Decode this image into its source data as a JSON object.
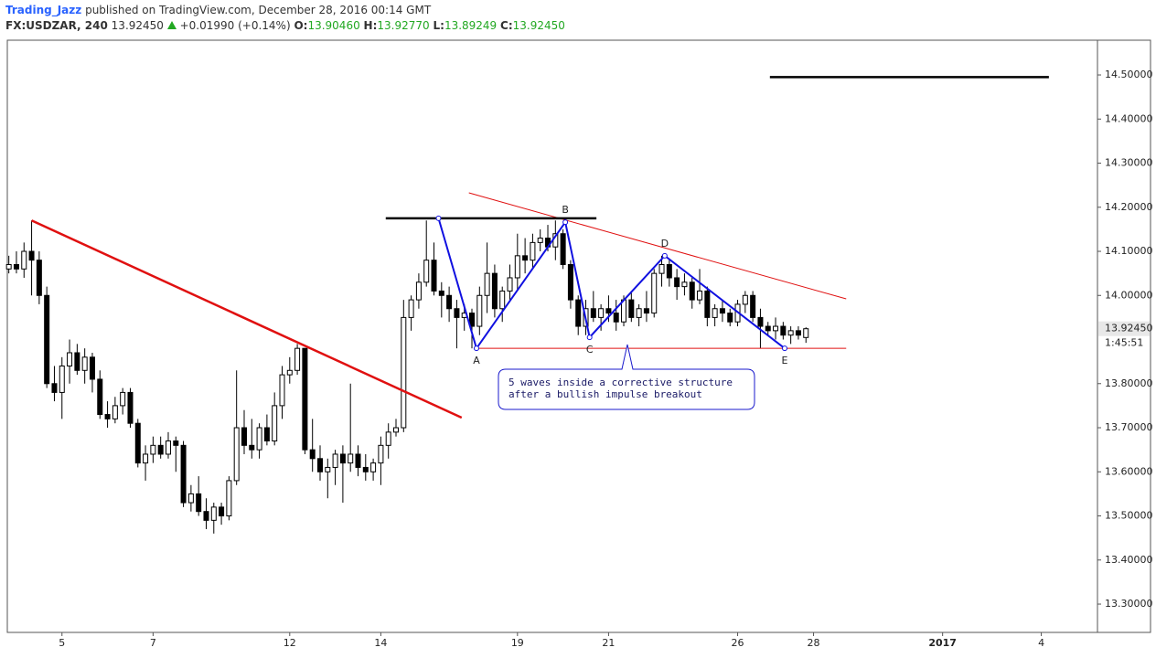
{
  "header": {
    "user": "Trading_Jazz",
    "published": "published on TradingView.com, December 28, 2016 00:14 GMT",
    "symbol": "FX:USDZAR, 240",
    "last": "13.92450",
    "change": "+0.01990 (+0.14%)",
    "ohlc": [
      {
        "label": "O:",
        "value": "13.90460"
      },
      {
        "label": "H:",
        "value": "13.92770"
      },
      {
        "label": "L:",
        "value": "13.89249"
      },
      {
        "label": "C:",
        "value": "13.92450"
      }
    ]
  },
  "chart_data": {
    "type": "candlestick",
    "up_color": "#ffffff",
    "down_color": "#000000",
    "xlim": [
      -7.2,
      136.4
    ],
    "ylim": [
      13.2358,
      14.5788
    ],
    "xticks": [
      {
        "value": 0,
        "label": "5"
      },
      {
        "value": 12,
        "label": "7"
      },
      {
        "value": 30,
        "label": "12"
      },
      {
        "value": 42,
        "label": "14"
      },
      {
        "value": 60,
        "label": "19"
      },
      {
        "value": 72,
        "label": "21"
      },
      {
        "value": 89,
        "label": "26"
      },
      {
        "value": 99,
        "label": "28"
      },
      {
        "value": 116,
        "label": "2017"
      },
      {
        "value": 129,
        "label": "4"
      }
    ],
    "yticks": [
      {
        "value": 13.3,
        "label": "13.30000"
      },
      {
        "value": 13.4,
        "label": "13.40000"
      },
      {
        "value": 13.5,
        "label": "13.50000"
      },
      {
        "value": 13.6,
        "label": "13.60000"
      },
      {
        "value": 13.7,
        "label": "13.70000"
      },
      {
        "value": 13.8,
        "label": "13.80000"
      },
      {
        "value": 14.0,
        "label": "14.00000"
      },
      {
        "value": 14.1,
        "label": "14.10000"
      },
      {
        "value": 14.2,
        "label": "14.20000"
      },
      {
        "value": 14.3,
        "label": "14.30000"
      },
      {
        "value": 14.4,
        "label": "14.40000"
      },
      {
        "value": 14.5,
        "label": "14.50000"
      }
    ],
    "last_price": {
      "value": 13.9245,
      "label": "13.92450"
    },
    "countdown": "1:45:51",
    "x": [
      -7,
      -6,
      -5,
      -4,
      -3,
      -2,
      -1,
      0,
      1,
      2,
      3,
      4,
      5,
      6,
      7,
      8,
      9,
      10,
      11,
      12,
      13,
      14,
      15,
      16,
      17,
      18,
      19,
      20,
      21,
      22,
      23,
      24,
      25,
      26,
      27,
      28,
      29,
      30,
      31,
      32,
      33,
      34,
      35,
      36,
      37,
      38,
      39,
      40,
      41,
      42,
      43,
      44,
      45,
      46,
      47,
      48,
      49,
      50,
      51,
      52,
      53,
      54,
      55,
      56,
      57,
      58,
      59,
      60,
      61,
      62,
      63,
      64,
      65,
      66,
      67,
      68,
      69,
      70,
      71,
      72,
      73,
      74,
      75,
      76,
      77,
      78,
      79,
      80,
      81,
      82,
      83,
      84,
      85,
      86,
      87,
      88,
      89,
      90,
      91,
      92,
      93,
      94,
      95,
      96,
      97,
      98
    ],
    "ohlc": [
      [
        14.06,
        14.09,
        14.05,
        14.07
      ],
      [
        14.07,
        14.1,
        14.05,
        14.06
      ],
      [
        14.06,
        14.12,
        14.04,
        14.1
      ],
      [
        14.1,
        14.17,
        14.0,
        14.08
      ],
      [
        14.08,
        14.1,
        13.98,
        14.0
      ],
      [
        14.0,
        14.02,
        13.79,
        13.8
      ],
      [
        13.8,
        13.84,
        13.76,
        13.78
      ],
      [
        13.78,
        13.86,
        13.72,
        13.84
      ],
      [
        13.84,
        13.9,
        13.8,
        13.87
      ],
      [
        13.87,
        13.89,
        13.82,
        13.83
      ],
      [
        13.83,
        13.88,
        13.8,
        13.86
      ],
      [
        13.86,
        13.87,
        13.78,
        13.81
      ],
      [
        13.81,
        13.83,
        13.72,
        13.73
      ],
      [
        13.73,
        13.76,
        13.7,
        13.72
      ],
      [
        13.72,
        13.77,
        13.71,
        13.75
      ],
      [
        13.75,
        13.79,
        13.73,
        13.78
      ],
      [
        13.78,
        13.79,
        13.7,
        13.71
      ],
      [
        13.71,
        13.72,
        13.61,
        13.62
      ],
      [
        13.62,
        13.66,
        13.58,
        13.64
      ],
      [
        13.64,
        13.68,
        13.62,
        13.66
      ],
      [
        13.66,
        13.68,
        13.63,
        13.64
      ],
      [
        13.64,
        13.69,
        13.63,
        13.67
      ],
      [
        13.67,
        13.68,
        13.6,
        13.66
      ],
      [
        13.66,
        13.67,
        13.52,
        13.53
      ],
      [
        13.53,
        13.57,
        13.51,
        13.55
      ],
      [
        13.55,
        13.59,
        13.5,
        13.51
      ],
      [
        13.51,
        13.54,
        13.47,
        13.49
      ],
      [
        13.49,
        13.53,
        13.46,
        13.52
      ],
      [
        13.52,
        13.53,
        13.48,
        13.5
      ],
      [
        13.5,
        13.59,
        13.49,
        13.58
      ],
      [
        13.58,
        13.83,
        13.57,
        13.7
      ],
      [
        13.7,
        13.74,
        13.64,
        13.66
      ],
      [
        13.66,
        13.72,
        13.63,
        13.65
      ],
      [
        13.65,
        13.71,
        13.63,
        13.7
      ],
      [
        13.7,
        13.73,
        13.66,
        13.67
      ],
      [
        13.67,
        13.78,
        13.66,
        13.75
      ],
      [
        13.75,
        13.84,
        13.72,
        13.82
      ],
      [
        13.82,
        13.86,
        13.8,
        13.83
      ],
      [
        13.83,
        13.89,
        13.82,
        13.88
      ],
      [
        13.88,
        13.88,
        13.64,
        13.65
      ],
      [
        13.65,
        13.72,
        13.6,
        13.63
      ],
      [
        13.63,
        13.66,
        13.58,
        13.6
      ],
      [
        13.6,
        13.63,
        13.54,
        13.61
      ],
      [
        13.61,
        13.65,
        13.57,
        13.64
      ],
      [
        13.64,
        13.66,
        13.53,
        13.62
      ],
      [
        13.62,
        13.8,
        13.6,
        13.64
      ],
      [
        13.64,
        13.66,
        13.59,
        13.61
      ],
      [
        13.61,
        13.64,
        13.58,
        13.6
      ],
      [
        13.6,
        13.63,
        13.58,
        13.62
      ],
      [
        13.62,
        13.68,
        13.57,
        13.66
      ],
      [
        13.66,
        13.71,
        13.63,
        13.69
      ],
      [
        13.69,
        13.72,
        13.68,
        13.7
      ],
      [
        13.7,
        13.99,
        13.69,
        13.95
      ],
      [
        13.95,
        14.0,
        13.92,
        13.99
      ],
      [
        13.99,
        14.05,
        13.97,
        14.03
      ],
      [
        14.03,
        14.17,
        14.02,
        14.08
      ],
      [
        14.08,
        14.12,
        14.0,
        14.01
      ],
      [
        14.01,
        14.03,
        13.95,
        14.0
      ],
      [
        14.0,
        14.02,
        13.94,
        13.97
      ],
      [
        13.97,
        13.99,
        13.88,
        13.95
      ],
      [
        13.95,
        13.98,
        13.92,
        13.96
      ],
      [
        13.96,
        13.97,
        13.88,
        13.93
      ],
      [
        13.93,
        14.02,
        13.91,
        14.0
      ],
      [
        14.0,
        14.12,
        13.96,
        14.05
      ],
      [
        14.05,
        14.07,
        13.95,
        13.97
      ],
      [
        13.97,
        14.02,
        13.94,
        14.01
      ],
      [
        14.01,
        14.07,
        13.99,
        14.04
      ],
      [
        14.04,
        14.14,
        14.01,
        14.09
      ],
      [
        14.09,
        14.13,
        14.05,
        14.08
      ],
      [
        14.08,
        14.14,
        14.06,
        14.12
      ],
      [
        14.12,
        14.15,
        14.1,
        14.13
      ],
      [
        14.13,
        14.16,
        14.1,
        14.11
      ],
      [
        14.11,
        14.17,
        14.08,
        14.14
      ],
      [
        14.14,
        14.15,
        14.06,
        14.07
      ],
      [
        14.07,
        14.08,
        13.97,
        13.99
      ],
      [
        13.99,
        14.0,
        13.91,
        13.93
      ],
      [
        13.93,
        13.99,
        13.91,
        13.97
      ],
      [
        13.97,
        14.01,
        13.94,
        13.95
      ],
      [
        13.95,
        13.98,
        13.92,
        13.97
      ],
      [
        13.97,
        14.0,
        13.94,
        13.96
      ],
      [
        13.96,
        13.99,
        13.92,
        13.94
      ],
      [
        13.94,
        14.0,
        13.93,
        13.99
      ],
      [
        13.99,
        14.01,
        13.94,
        13.95
      ],
      [
        13.95,
        13.98,
        13.93,
        13.97
      ],
      [
        13.97,
        14.01,
        13.94,
        13.96
      ],
      [
        13.96,
        14.06,
        13.95,
        14.05
      ],
      [
        14.05,
        14.09,
        14.02,
        14.07
      ],
      [
        14.07,
        14.08,
        14.02,
        14.04
      ],
      [
        14.04,
        14.06,
        13.99,
        14.02
      ],
      [
        14.02,
        14.05,
        14.0,
        14.03
      ],
      [
        14.03,
        14.04,
        13.97,
        13.99
      ],
      [
        13.99,
        14.06,
        13.98,
        14.01
      ],
      [
        14.01,
        14.02,
        13.93,
        13.95
      ],
      [
        13.95,
        13.98,
        13.93,
        13.97
      ],
      [
        13.97,
        13.99,
        13.94,
        13.96
      ],
      [
        13.96,
        13.97,
        13.93,
        13.94
      ],
      [
        13.94,
        13.99,
        13.93,
        13.98
      ],
      [
        13.98,
        14.01,
        13.96,
        14.0
      ],
      [
        14.0,
        14.01,
        13.94,
        13.95
      ],
      [
        13.95,
        13.97,
        13.88,
        13.93
      ],
      [
        13.93,
        13.94,
        13.91,
        13.92
      ],
      [
        13.92,
        13.95,
        13.9,
        13.93
      ],
      [
        13.93,
        13.94,
        13.9,
        13.91
      ],
      [
        13.91,
        13.93,
        13.89,
        13.92
      ],
      [
        13.92,
        13.93,
        13.9,
        13.91
      ],
      [
        13.9046,
        13.9277,
        13.89249,
        13.9245
      ]
    ],
    "lines": [
      {
        "color": "#e01010",
        "width": 2.5,
        "points": [
          [
            -4,
            14.17
          ],
          [
            52.65,
            13.7228
          ]
        ]
      },
      {
        "color": "#e01010",
        "width": 1,
        "points": [
          [
            53.6,
            14.2326
          ],
          [
            103.3,
            13.9922
          ]
        ]
      },
      {
        "color": "#e01010",
        "width": 1,
        "points": [
          [
            54.6,
            13.88
          ],
          [
            103.3,
            13.88
          ]
        ]
      },
      {
        "color": "#000000",
        "width": 2.5,
        "points": [
          [
            42.65,
            14.175
          ],
          [
            70.4,
            14.175
          ]
        ]
      },
      {
        "color": "#000000",
        "width": 2.5,
        "points": [
          [
            93.25,
            14.495
          ],
          [
            130,
            14.495
          ]
        ]
      }
    ],
    "zigzag": {
      "color": "#1010e0",
      "points": [
        [
          49.6,
          14.175
        ],
        [
          54.6,
          13.88
        ],
        [
          66.3,
          14.166
        ],
        [
          69.5,
          13.905
        ],
        [
          79.4,
          14.09
        ],
        [
          95.2,
          13.88
        ]
      ],
      "labels": [
        null,
        "A",
        "B",
        "C",
        "D",
        "E"
      ]
    },
    "callout": {
      "anchor": [
        74.46,
        13.8839
      ],
      "lines": [
        "5 waves inside a corrective structure",
        "after a bullish impulse breakout"
      ]
    }
  }
}
